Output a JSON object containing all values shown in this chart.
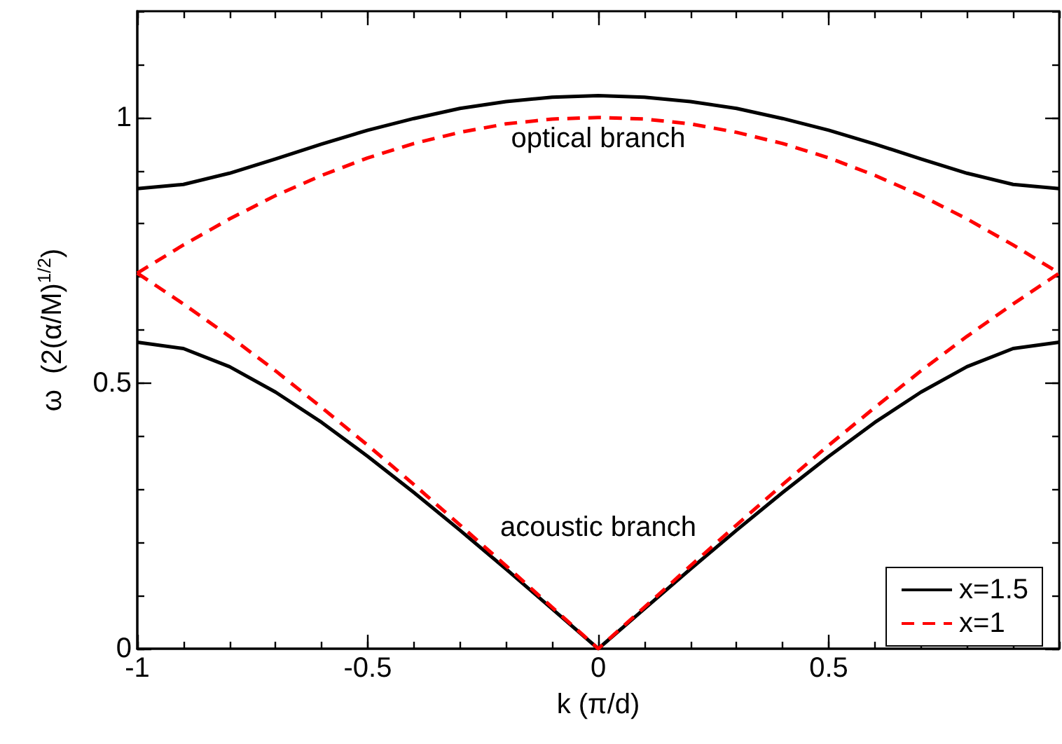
{
  "chart_data": {
    "type": "line",
    "xlabel": "k (π/d)",
    "ylabel": "ω  (2(α/M)$^{1/2}$)",
    "x": [
      -1,
      -0.9,
      -0.8,
      -0.7,
      -0.6,
      -0.5,
      -0.4,
      -0.3,
      -0.2,
      -0.1,
      0,
      0.1,
      0.2,
      0.3,
      0.4,
      0.5,
      0.6,
      0.7,
      0.8,
      0.9,
      1
    ],
    "series": [
      {
        "name": "x=1.5",
        "color": "#000000",
        "line_style": "solid",
        "values": [
          0.866,
          0.874,
          0.895,
          0.922,
          0.95,
          0.976,
          0.998,
          1.017,
          1.03,
          1.038,
          1.041,
          1.038,
          1.03,
          1.017,
          0.998,
          0.976,
          0.95,
          0.922,
          0.895,
          0.874,
          0.866
        ]
      },
      {
        "color": "#000000",
        "line_style": "solid",
        "values": [
          0.577,
          0.565,
          0.531,
          0.483,
          0.426,
          0.362,
          0.294,
          0.223,
          0.15,
          0.075,
          0,
          0.075,
          0.15,
          0.223,
          0.294,
          0.362,
          0.426,
          0.483,
          0.531,
          0.565,
          0.577
        ]
      },
      {
        "name": "x=1",
        "color": "#ff0000",
        "line_style": "dashed",
        "values": [
          0.707,
          0.76,
          0.809,
          0.853,
          0.891,
          0.924,
          0.951,
          0.972,
          0.988,
          0.997,
          1,
          0.997,
          0.988,
          0.972,
          0.951,
          0.924,
          0.891,
          0.853,
          0.809,
          0.76,
          0.707
        ]
      },
      {
        "color": "#ff0000",
        "line_style": "dashed",
        "values": [
          0.707,
          0.649,
          0.588,
          0.523,
          0.454,
          0.383,
          0.309,
          0.233,
          0.156,
          0.078,
          0,
          0.078,
          0.156,
          0.233,
          0.309,
          0.383,
          0.454,
          0.523,
          0.588,
          0.649,
          0.707
        ]
      }
    ],
    "xlim": [
      -1,
      1
    ],
    "xticks": [
      -1,
      -0.5,
      0,
      0.5
    ],
    "ylim": [
      0,
      1.2
    ],
    "yticks": [
      0,
      0.5,
      1
    ],
    "annotations": [
      "optical branch",
      "acoustic branch"
    ],
    "legend": "bottom right",
    "grid": false,
    "marker": "none"
  }
}
